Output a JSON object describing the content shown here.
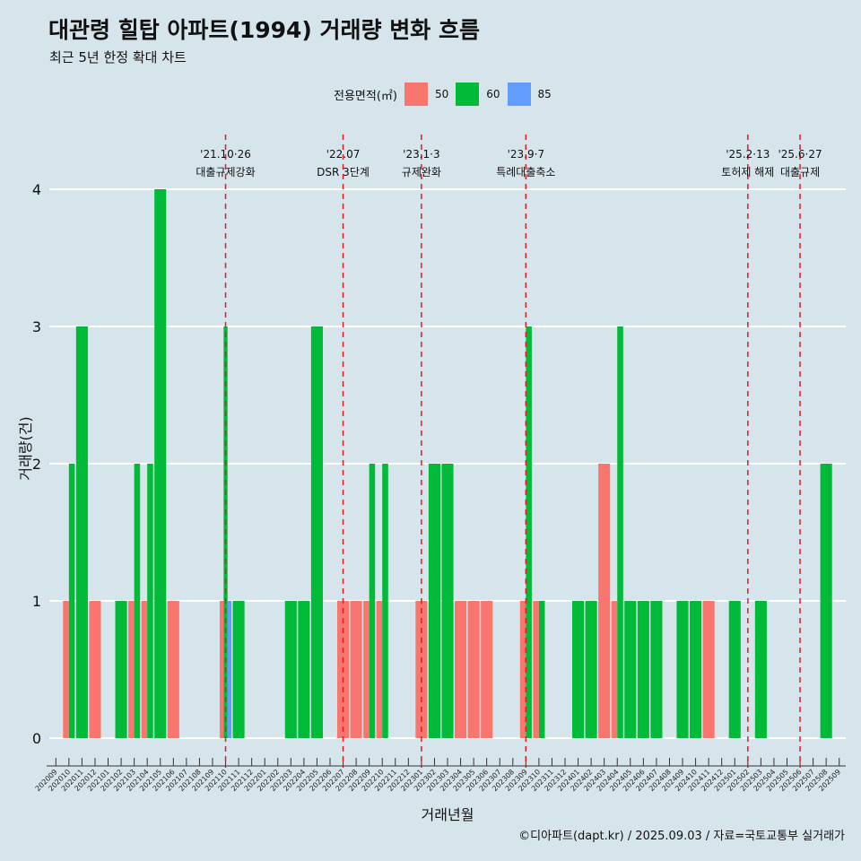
{
  "header": {
    "title": "대관령 힐탑 아파트(1994) 거래량 변화 흐름",
    "subtitle": "최근 5년 한정 확대 차트"
  },
  "legend": {
    "title": "전용면적(㎡)",
    "items": [
      {
        "label": "50",
        "color": "#f8766d"
      },
      {
        "label": "60",
        "color": "#00ba38"
      },
      {
        "label": "85",
        "color": "#619cff"
      }
    ]
  },
  "caption": "©디아파트(dapt.kr) / 2025.09.03 / 자료=국토교통부 실거래가",
  "chart_data": {
    "type": "bar",
    "xlabel": "거래년월",
    "ylabel": "거래량(건)",
    "ylim": [
      0,
      4
    ],
    "yticks": [
      0,
      1,
      2,
      3,
      4
    ],
    "grid": true,
    "legend_position": "top",
    "categories": [
      "202009",
      "202010",
      "202011",
      "202012",
      "202101",
      "202102",
      "202103",
      "202104",
      "202105",
      "202106",
      "202107",
      "202108",
      "202109",
      "202110",
      "202111",
      "202112",
      "202201",
      "202202",
      "202203",
      "202204",
      "202205",
      "202206",
      "202207",
      "202208",
      "202209",
      "202210",
      "202211",
      "202212",
      "202301",
      "202302",
      "202303",
      "202304",
      "202305",
      "202306",
      "202307",
      "202308",
      "202309",
      "202310",
      "202311",
      "202312",
      "202401",
      "202402",
      "202403",
      "202404",
      "202405",
      "202406",
      "202407",
      "202408",
      "202409",
      "202410",
      "202411",
      "202412",
      "202501",
      "202502",
      "202503",
      "202504",
      "202505",
      "202506",
      "202507",
      "202508",
      "202509"
    ],
    "series": [
      {
        "name": "50",
        "color": "#f8766d",
        "values": [
          0,
          1,
          0,
          1,
          0,
          0,
          1,
          1,
          0,
          1,
          0,
          0,
          0,
          1,
          0,
          0,
          0,
          0,
          0,
          0,
          0,
          0,
          1,
          1,
          1,
          1,
          0,
          0,
          1,
          0,
          0,
          1,
          1,
          1,
          0,
          0,
          1,
          1,
          0,
          0,
          0,
          0,
          2,
          1,
          0,
          0,
          0,
          0,
          0,
          0,
          1,
          0,
          0,
          0,
          0,
          0,
          0,
          0,
          0,
          0,
          0
        ]
      },
      {
        "name": "60",
        "color": "#00ba38",
        "values": [
          0,
          2,
          3,
          0,
          0,
          1,
          2,
          2,
          4,
          0,
          0,
          0,
          0,
          3,
          1,
          0,
          0,
          0,
          1,
          1,
          3,
          0,
          0,
          0,
          2,
          2,
          0,
          0,
          0,
          2,
          2,
          0,
          0,
          0,
          0,
          0,
          3,
          1,
          0,
          0,
          1,
          1,
          0,
          3,
          1,
          1,
          1,
          0,
          1,
          1,
          0,
          0,
          1,
          0,
          1,
          0,
          0,
          0,
          0,
          2,
          0
        ]
      },
      {
        "name": "85",
        "color": "#619cff",
        "values": [
          0,
          0,
          0,
          0,
          0,
          0,
          0,
          0,
          0,
          0,
          0,
          0,
          0,
          1,
          0,
          0,
          0,
          0,
          0,
          0,
          0,
          0,
          0,
          0,
          0,
          0,
          0,
          0,
          0,
          0,
          0,
          0,
          0,
          0,
          0,
          0,
          0,
          0,
          0,
          0,
          0,
          0,
          0,
          0,
          0,
          0,
          0,
          0,
          0,
          0,
          0,
          0,
          0,
          0,
          0,
          0,
          0,
          0,
          0,
          0,
          0
        ]
      }
    ],
    "annotations": [
      {
        "month": "202110",
        "date": "'21.10·26",
        "label": "대출규제강화"
      },
      {
        "month": "202207",
        "date": "'22.07",
        "label": "DSR 3단계"
      },
      {
        "month": "202301",
        "date": "'23.1·3",
        "label": "규제완화"
      },
      {
        "month": "202309",
        "date": "'23.9·7",
        "label": "특례대출축소"
      },
      {
        "month": "202502",
        "date": "'25.2·13",
        "label": "토허제 해제"
      },
      {
        "month": "202506",
        "date": "'25.6·27",
        "label": "대출규제"
      }
    ]
  }
}
